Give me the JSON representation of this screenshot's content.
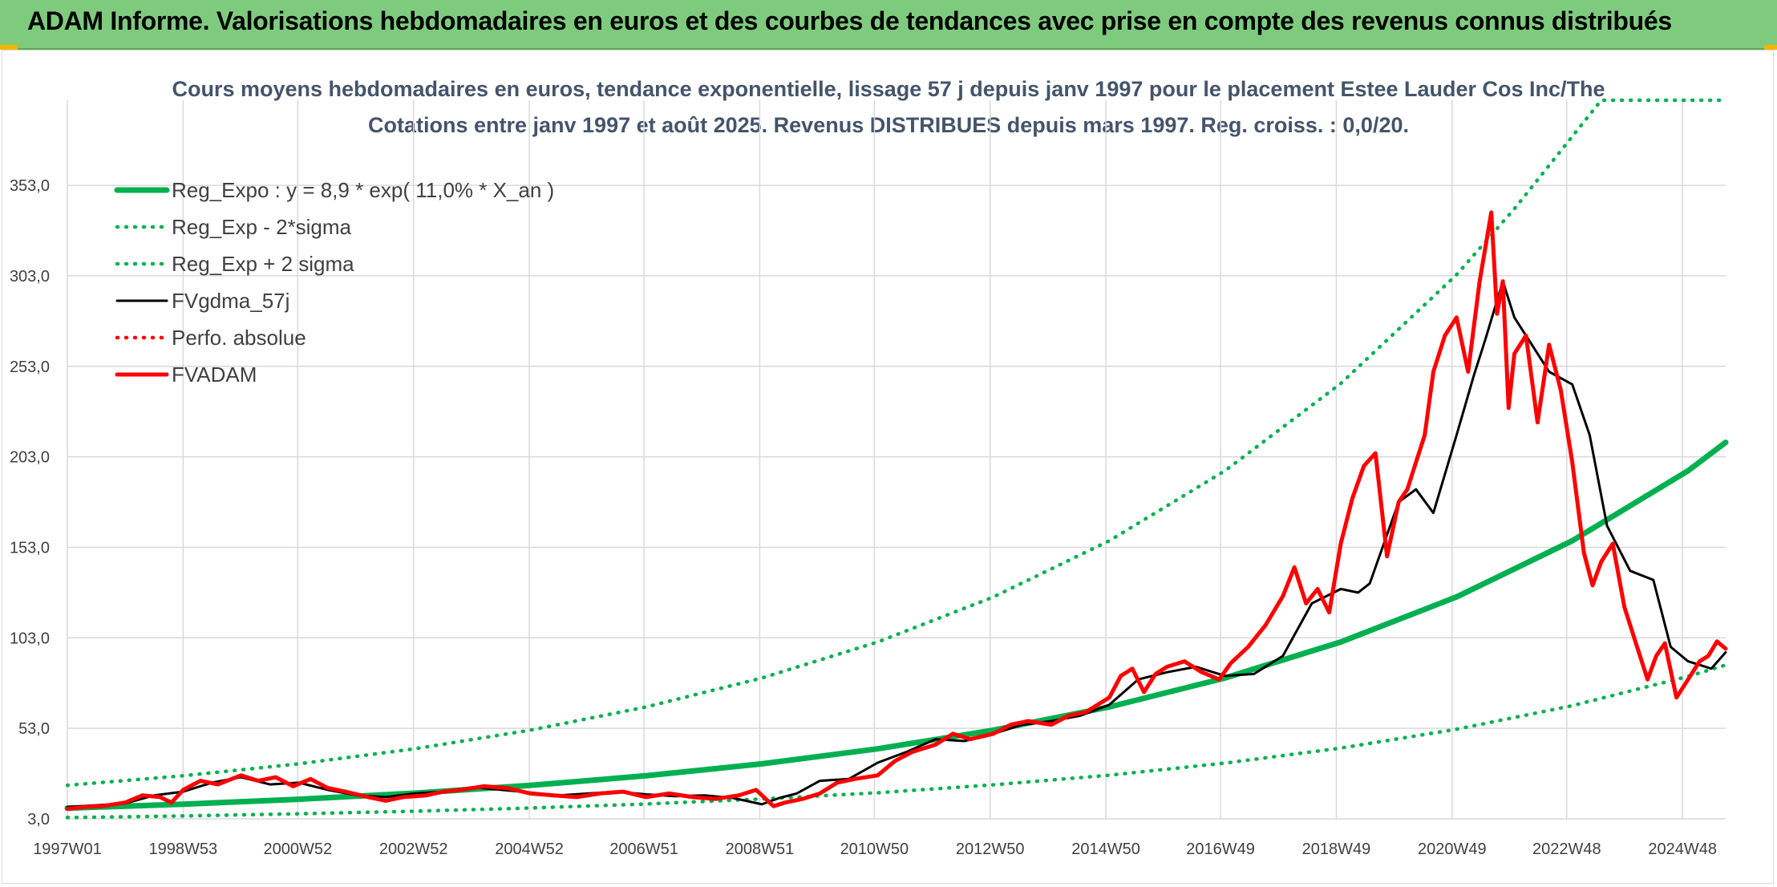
{
  "banner": {
    "title": "ADAM Informe. Valorisations hebdomadaires en euros et des courbes de tendances avec prise en compte des revenus connus distribués"
  },
  "colors": {
    "banner_bg": "#7ecb7e",
    "trend_green": "#00b050",
    "price_red": "#ff0000",
    "smooth_black": "#000000"
  },
  "chart_data": {
    "type": "line",
    "title": "Cours moyens hebdomadaires en euros, tendance exponentielle, lissage 57 j depuis janv 1997 pour le placement Estee Lauder Cos Inc/The",
    "subtitle": "Cotations entre janv 1997 et août 2025. Revenus DISTRIBUES depuis mars 1997. Reg. croiss. : 0,0/20.",
    "xlabel": "",
    "ylabel": "",
    "x_ticks": [
      "1997W01",
      "1998W53",
      "2000W52",
      "2002W52",
      "2004W52",
      "2006W51",
      "2008W51",
      "2010W50",
      "2012W50",
      "2014W50",
      "2016W49",
      "2018W49",
      "2020W49",
      "2022W48",
      "2024W48"
    ],
    "x_range": [
      1997.0,
      2025.65
    ],
    "y_ticks": [
      "3,0",
      "53,0",
      "103,0",
      "153,0",
      "203,0",
      "253,0",
      "303,0",
      "353,0"
    ],
    "ylim": [
      3,
      400
    ],
    "grid": true,
    "legend_position": "top-left",
    "series": [
      {
        "name": "Reg_Expo : y = 8,9 * exp( 11,0% *  X_an )",
        "style": "solid-thick",
        "color": "#00b050",
        "x": [
          1997,
          1999,
          2001,
          2003,
          2005,
          2007,
          2009,
          2011,
          2013,
          2015,
          2017,
          2019,
          2021,
          2023,
          2025,
          2025.65
        ],
        "values": [
          8.9,
          11.1,
          13.8,
          17.2,
          21.5,
          26.8,
          33.4,
          41.7,
          52.0,
          64.8,
          80.8,
          100.7,
          125.6,
          156.6,
          195.3,
          211.0
        ]
      },
      {
        "name": "Reg_Exp - 2*sigma",
        "style": "dotted",
        "color": "#00b050",
        "x": [
          1997,
          1999,
          2001,
          2003,
          2005,
          2007,
          2009,
          2011,
          2013,
          2015,
          2017,
          2019,
          2021,
          2023,
          2025,
          2025.65
        ],
        "values": [
          3.7,
          4.6,
          5.8,
          7.2,
          9.0,
          11.2,
          14.0,
          17.4,
          21.8,
          27.1,
          33.8,
          42.1,
          52.5,
          65.5,
          81.7,
          88.0
        ]
      },
      {
        "name": "Reg_Exp + 2 sigma",
        "style": "dotted",
        "color": "#00b050",
        "x": [
          1997,
          1999,
          2001,
          2003,
          2005,
          2007,
          2009,
          2011,
          2013,
          2015,
          2017,
          2019,
          2021,
          2022,
          2022.5,
          2023.5,
          2025.65
        ],
        "values": [
          21.5,
          26.8,
          33.4,
          41.7,
          52.0,
          64.8,
          80.8,
          100.7,
          125.6,
          156.6,
          195.3,
          243.5,
          303.6,
          340.0,
          360.0,
          401.0,
          401.0
        ]
      },
      {
        "name": "FVgdma_57j",
        "style": "solid",
        "color": "#000000",
        "x": [
          1997.0,
          1997.5,
          1998.0,
          1998.5,
          1999.0,
          1999.5,
          2000.0,
          2000.5,
          2001.0,
          2001.5,
          2002.0,
          2002.5,
          2003.0,
          2003.5,
          2004.0,
          2004.5,
          2005.0,
          2005.5,
          2006.0,
          2006.5,
          2007.0,
          2007.5,
          2008.0,
          2008.5,
          2009.0,
          2009.3,
          2009.6,
          2010.0,
          2010.5,
          2011.0,
          2011.5,
          2012.0,
          2012.5,
          2013.0,
          2013.5,
          2014.0,
          2014.5,
          2015.0,
          2015.5,
          2016.0,
          2016.5,
          2017.0,
          2017.5,
          2018.0,
          2018.5,
          2019.0,
          2019.3,
          2019.5,
          2019.8,
          2020.0,
          2020.3,
          2020.6,
          2021.0,
          2021.3,
          2021.5,
          2021.8,
          2022.0,
          2022.3,
          2022.6,
          2023.0,
          2023.3,
          2023.6,
          2024.0,
          2024.4,
          2024.7,
          2025.0,
          2025.4,
          2025.65
        ],
        "values": [
          9.5,
          10.5,
          11.5,
          16.0,
          18.0,
          23.0,
          26.0,
          22.0,
          23.0,
          19.0,
          16.0,
          15.0,
          17.0,
          18.0,
          20.5,
          19.0,
          17.5,
          16.0,
          17.0,
          18.0,
          16.5,
          15.5,
          16.0,
          14.5,
          11.0,
          14.5,
          17.0,
          24.0,
          25.0,
          34.0,
          40.0,
          47.0,
          46.0,
          50.0,
          55.0,
          57.0,
          60.0,
          66.0,
          80.0,
          84.0,
          87.0,
          82.0,
          83.0,
          93.0,
          122.0,
          130.0,
          128.0,
          133.0,
          160.0,
          178.0,
          185.0,
          172.0,
          215.0,
          248.0,
          268.0,
          300.0,
          280.0,
          265.0,
          250.0,
          243.0,
          215.0,
          165.0,
          140.0,
          135.0,
          98.0,
          90.0,
          86.0,
          95.0
        ]
      },
      {
        "name": "Perfo. absolue",
        "style": "dotted",
        "color": "#ff0000",
        "x": [],
        "values": []
      },
      {
        "name": "FVADAM",
        "style": "solid-thick",
        "color": "#ff0000",
        "x": [
          1997.0,
          1997.3,
          1997.6,
          1998.0,
          1998.3,
          1998.6,
          1998.8,
          1999.0,
          1999.3,
          1999.6,
          2000.0,
          2000.3,
          2000.6,
          2000.9,
          2001.2,
          2001.5,
          2001.8,
          2002.2,
          2002.5,
          2002.8,
          2003.2,
          2003.5,
          2003.8,
          2004.2,
          2004.6,
          2005.0,
          2005.4,
          2005.8,
          2006.2,
          2006.6,
          2007.0,
          2007.4,
          2007.8,
          2008.2,
          2008.6,
          2008.9,
          2009.2,
          2009.4,
          2009.7,
          2010.0,
          2010.3,
          2010.6,
          2011.0,
          2011.3,
          2011.6,
          2012.0,
          2012.3,
          2012.6,
          2013.0,
          2013.3,
          2013.6,
          2014.0,
          2014.3,
          2014.6,
          2015.0,
          2015.2,
          2015.4,
          2015.6,
          2015.8,
          2016.0,
          2016.3,
          2016.6,
          2016.9,
          2017.1,
          2017.4,
          2017.7,
          2018.0,
          2018.2,
          2018.4,
          2018.6,
          2018.8,
          2019.0,
          2019.2,
          2019.4,
          2019.6,
          2019.8,
          2020.0,
          2020.15,
          2020.3,
          2020.45,
          2020.6,
          2020.8,
          2021.0,
          2021.2,
          2021.4,
          2021.6,
          2021.7,
          2021.8,
          2021.9,
          2022.0,
          2022.2,
          2022.4,
          2022.6,
          2022.8,
          2023.0,
          2023.2,
          2023.35,
          2023.5,
          2023.7,
          2023.9,
          2024.1,
          2024.3,
          2024.45,
          2024.6,
          2024.8,
          2025.0,
          2025.2,
          2025.35,
          2025.5,
          2025.65
        ],
        "values": [
          8.5,
          9.5,
          10.0,
          12.0,
          16.0,
          15.0,
          12.0,
          19.0,
          24.0,
          22.0,
          27.0,
          24.0,
          26.0,
          21.0,
          25.0,
          20.0,
          18.0,
          15.0,
          13.0,
          15.0,
          16.0,
          18.0,
          19.0,
          21.0,
          20.0,
          17.0,
          16.0,
          15.0,
          17.0,
          18.0,
          15.0,
          17.0,
          15.0,
          14.0,
          16.0,
          19.0,
          10.0,
          12.0,
          14.0,
          17.0,
          23.0,
          25.0,
          27.0,
          35.0,
          40.0,
          44.0,
          50.0,
          47.0,
          50.0,
          55.0,
          57.0,
          55.0,
          60.0,
          62.0,
          70.0,
          82.0,
          86.0,
          73.0,
          83.0,
          87.0,
          90.0,
          84.0,
          80.0,
          89.0,
          98.0,
          110.0,
          126.0,
          142.0,
          122.0,
          130.0,
          117.0,
          155.0,
          180.0,
          198.0,
          205.0,
          148.0,
          178.0,
          185.0,
          200.0,
          215.0,
          250.0,
          270.0,
          280.0,
          250.0,
          300.0,
          338.0,
          282.0,
          300.0,
          230.0,
          260.0,
          270.0,
          222.0,
          265.0,
          240.0,
          200.0,
          150.0,
          132.0,
          145.0,
          155.0,
          120.0,
          100.0,
          80.0,
          93.0,
          100.0,
          70.0,
          80.0,
          90.0,
          93.0,
          101.0,
          97.0
        ]
      }
    ]
  }
}
